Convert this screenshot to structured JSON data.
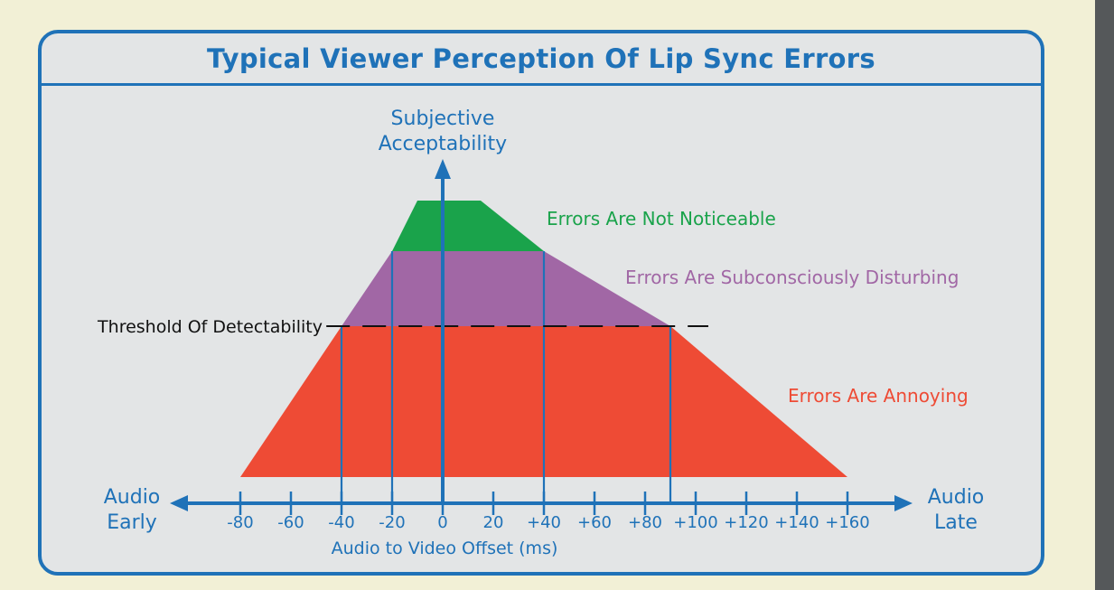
{
  "title": "Typical Viewer Perception Of Lip Sync Errors",
  "y_axis_label": [
    "Subjective",
    "Acceptability"
  ],
  "x_axis_title": "Audio to Video Offset (ms)",
  "x_left_label": [
    "Audio",
    "Early"
  ],
  "x_right_label": [
    "Audio",
    "Late"
  ],
  "threshold_label": "Threshold Of Detectability",
  "zones": [
    {
      "key": "not_noticeable",
      "label": "Errors Are Not Noticeable",
      "color": "#1aa34b"
    },
    {
      "key": "subconscious",
      "label": "Errors Are Subconsciously Disturbing",
      "color": "#a167a5"
    },
    {
      "key": "annoying",
      "label": "Errors Are Annoying",
      "color": "#ee4b35"
    }
  ],
  "tick_labels": [
    "-80",
    "-60",
    "-40",
    "-20",
    "0",
    "20",
    "+40",
    "+60",
    "+80",
    "+100",
    "+120",
    "+140",
    "+160"
  ],
  "tick_values": [
    -80,
    -60,
    -40,
    -20,
    0,
    20,
    40,
    60,
    80,
    100,
    120,
    140,
    160
  ],
  "boundaries_ms": {
    "annoying_range": [
      -80,
      160
    ],
    "subconscious_range": [
      -40,
      90
    ],
    "not_noticeable_range": [
      -20,
      40
    ],
    "perfect_range": [
      -10,
      15
    ]
  },
  "colors": {
    "accent": "#1f72b8",
    "panel_bg": "#e3e5e6",
    "page_bg": "#f2f0d6",
    "green": "#1aa34b",
    "purple": "#a167a5",
    "red": "#ee4b35"
  }
}
